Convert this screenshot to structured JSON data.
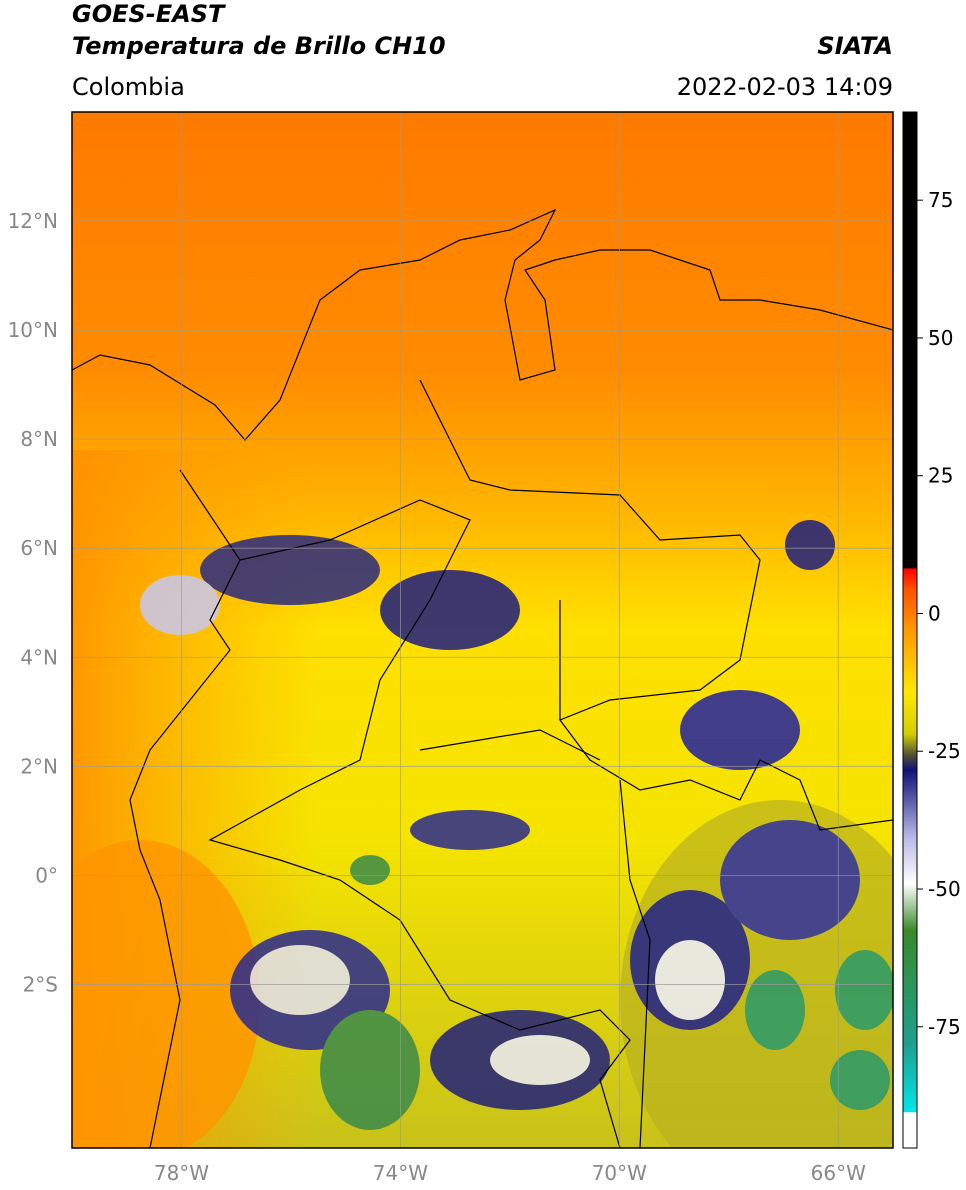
{
  "header": {
    "title": "GOES-EAST",
    "subtitle": "Temperatura de Brillo CH10",
    "source": "SIATA",
    "region": "Colombia",
    "datetime": "2022-02-03 14:09"
  },
  "map": {
    "xlim": [
      -80,
      -65
    ],
    "ylim": [
      -5,
      14
    ],
    "xticks": [
      {
        "value": -78,
        "label": "78°W"
      },
      {
        "value": -74,
        "label": "74°W"
      },
      {
        "value": -70,
        "label": "70°W"
      },
      {
        "value": -66,
        "label": "66°W"
      }
    ],
    "yticks": [
      {
        "value": 12,
        "label": "12°N"
      },
      {
        "value": 10,
        "label": "10°N"
      },
      {
        "value": 8,
        "label": "8°N"
      },
      {
        "value": 6,
        "label": "6°N"
      },
      {
        "value": 4,
        "label": "4°N"
      },
      {
        "value": 2,
        "label": "2°N"
      },
      {
        "value": 0,
        "label": "0°"
      },
      {
        "value": -2,
        "label": "2°S"
      }
    ],
    "grid": true
  },
  "colorbar": {
    "lim": [
      -97,
      91
    ],
    "ticks": [
      75,
      50,
      25,
      0,
      -25,
      -50,
      -75
    ]
  }
}
